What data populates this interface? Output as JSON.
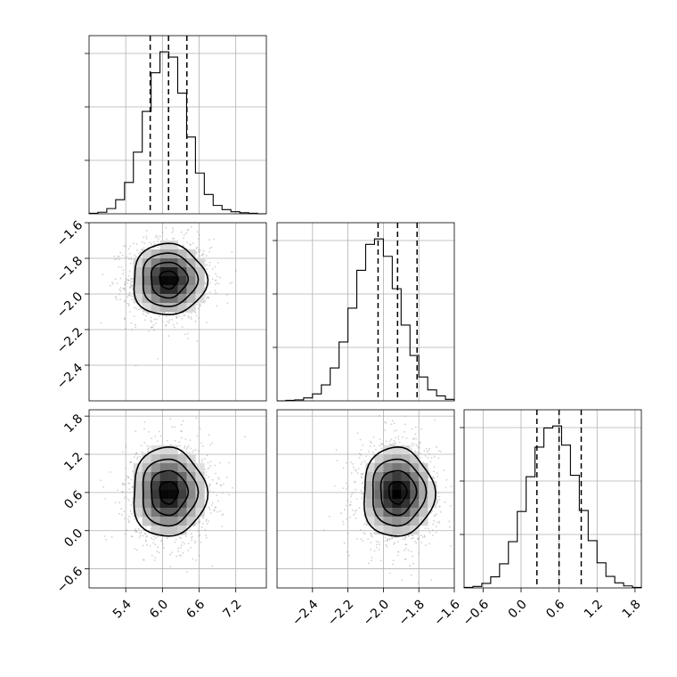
{
  "chart_data": {
    "type": "corner",
    "title": "",
    "parameters": [
      {
        "name": "",
        "mean": 6.1,
        "sd": 0.3,
        "quantiles": [
          5.8,
          6.1,
          6.4
        ],
        "range": [
          4.8,
          7.7
        ],
        "ticks": [
          5.4,
          6.0,
          6.6,
          7.2
        ],
        "tick_labels": [
          "5.4",
          "6.0",
          "6.6",
          "7.2"
        ]
      },
      {
        "name": "",
        "mean": -1.92,
        "sd": 0.1,
        "quantiles": [
          -2.03,
          -1.92,
          -1.81
        ],
        "range": [
          -2.6,
          -1.6
        ],
        "ticks": [
          -2.4,
          -2.2,
          -2.0,
          -1.8,
          -1.6
        ],
        "tick_labels": [
          "−2.4",
          "−2.2",
          "−2.0",
          "−1.8",
          "−1.6"
        ]
      },
      {
        "name": "",
        "mean": 0.6,
        "sd": 0.35,
        "quantiles": [
          0.25,
          0.6,
          0.95
        ],
        "range": [
          -0.9,
          1.9
        ],
        "ticks": [
          -0.6,
          0.0,
          0.6,
          1.2,
          1.8
        ],
        "tick_labels": [
          "−0.6",
          "0.0",
          "0.6",
          "1.2",
          "1.8"
        ]
      }
    ],
    "histograms": [
      {
        "param": 0,
        "bin_edges": [
          4.8,
          4.945,
          5.09,
          5.235,
          5.38,
          5.525,
          5.67,
          5.815,
          5.96,
          6.105,
          6.25,
          6.395,
          6.54,
          6.685,
          6.83,
          6.975,
          7.12,
          7.265,
          7.41,
          7.555,
          7.7
        ],
        "counts": [
          1,
          3,
          10,
          27,
          60,
          118,
          196,
          270,
          310,
          300,
          231,
          147,
          78,
          37,
          16,
          8,
          4,
          2,
          1,
          0
        ]
      },
      {
        "param": 1,
        "bin_edges": [
          -2.6,
          -2.55,
          -2.5,
          -2.45,
          -2.4,
          -2.35,
          -2.3,
          -2.25,
          -2.2,
          -2.15,
          -2.1,
          -2.05,
          -2.0,
          -1.95,
          -1.9,
          -1.85,
          -1.8,
          -1.75,
          -1.7,
          -1.65,
          -1.6
        ],
        "counts": [
          0,
          1,
          2,
          6,
          14,
          32,
          66,
          118,
          186,
          262,
          314,
          325,
          290,
          225,
          152,
          91,
          48,
          22,
          10,
          3
        ]
      },
      {
        "param": 2,
        "bin_edges": [
          -0.9,
          -0.76,
          -0.62,
          -0.48,
          -0.34,
          -0.2,
          -0.06,
          0.08,
          0.22,
          0.36,
          0.5,
          0.64,
          0.78,
          0.92,
          1.06,
          1.2,
          1.34,
          1.48,
          1.62,
          1.76,
          1.9
        ],
        "counts": [
          1,
          3,
          9,
          22,
          48,
          92,
          152,
          221,
          280,
          318,
          322,
          284,
          224,
          154,
          94,
          50,
          23,
          10,
          4,
          1
        ]
      }
    ],
    "pairs": [
      {
        "x_param": 0,
        "y_param": 1,
        "contour_levels_sigma": [
          0.5,
          1.0,
          1.5,
          2.0
        ]
      },
      {
        "x_param": 0,
        "y_param": 2,
        "contour_levels_sigma": [
          0.5,
          1.0,
          1.5,
          2.0
        ]
      },
      {
        "x_param": 1,
        "y_param": 2,
        "contour_levels_sigma": [
          0.5,
          1.0,
          1.5,
          2.0
        ]
      }
    ],
    "grid": true,
    "legend": "none"
  }
}
